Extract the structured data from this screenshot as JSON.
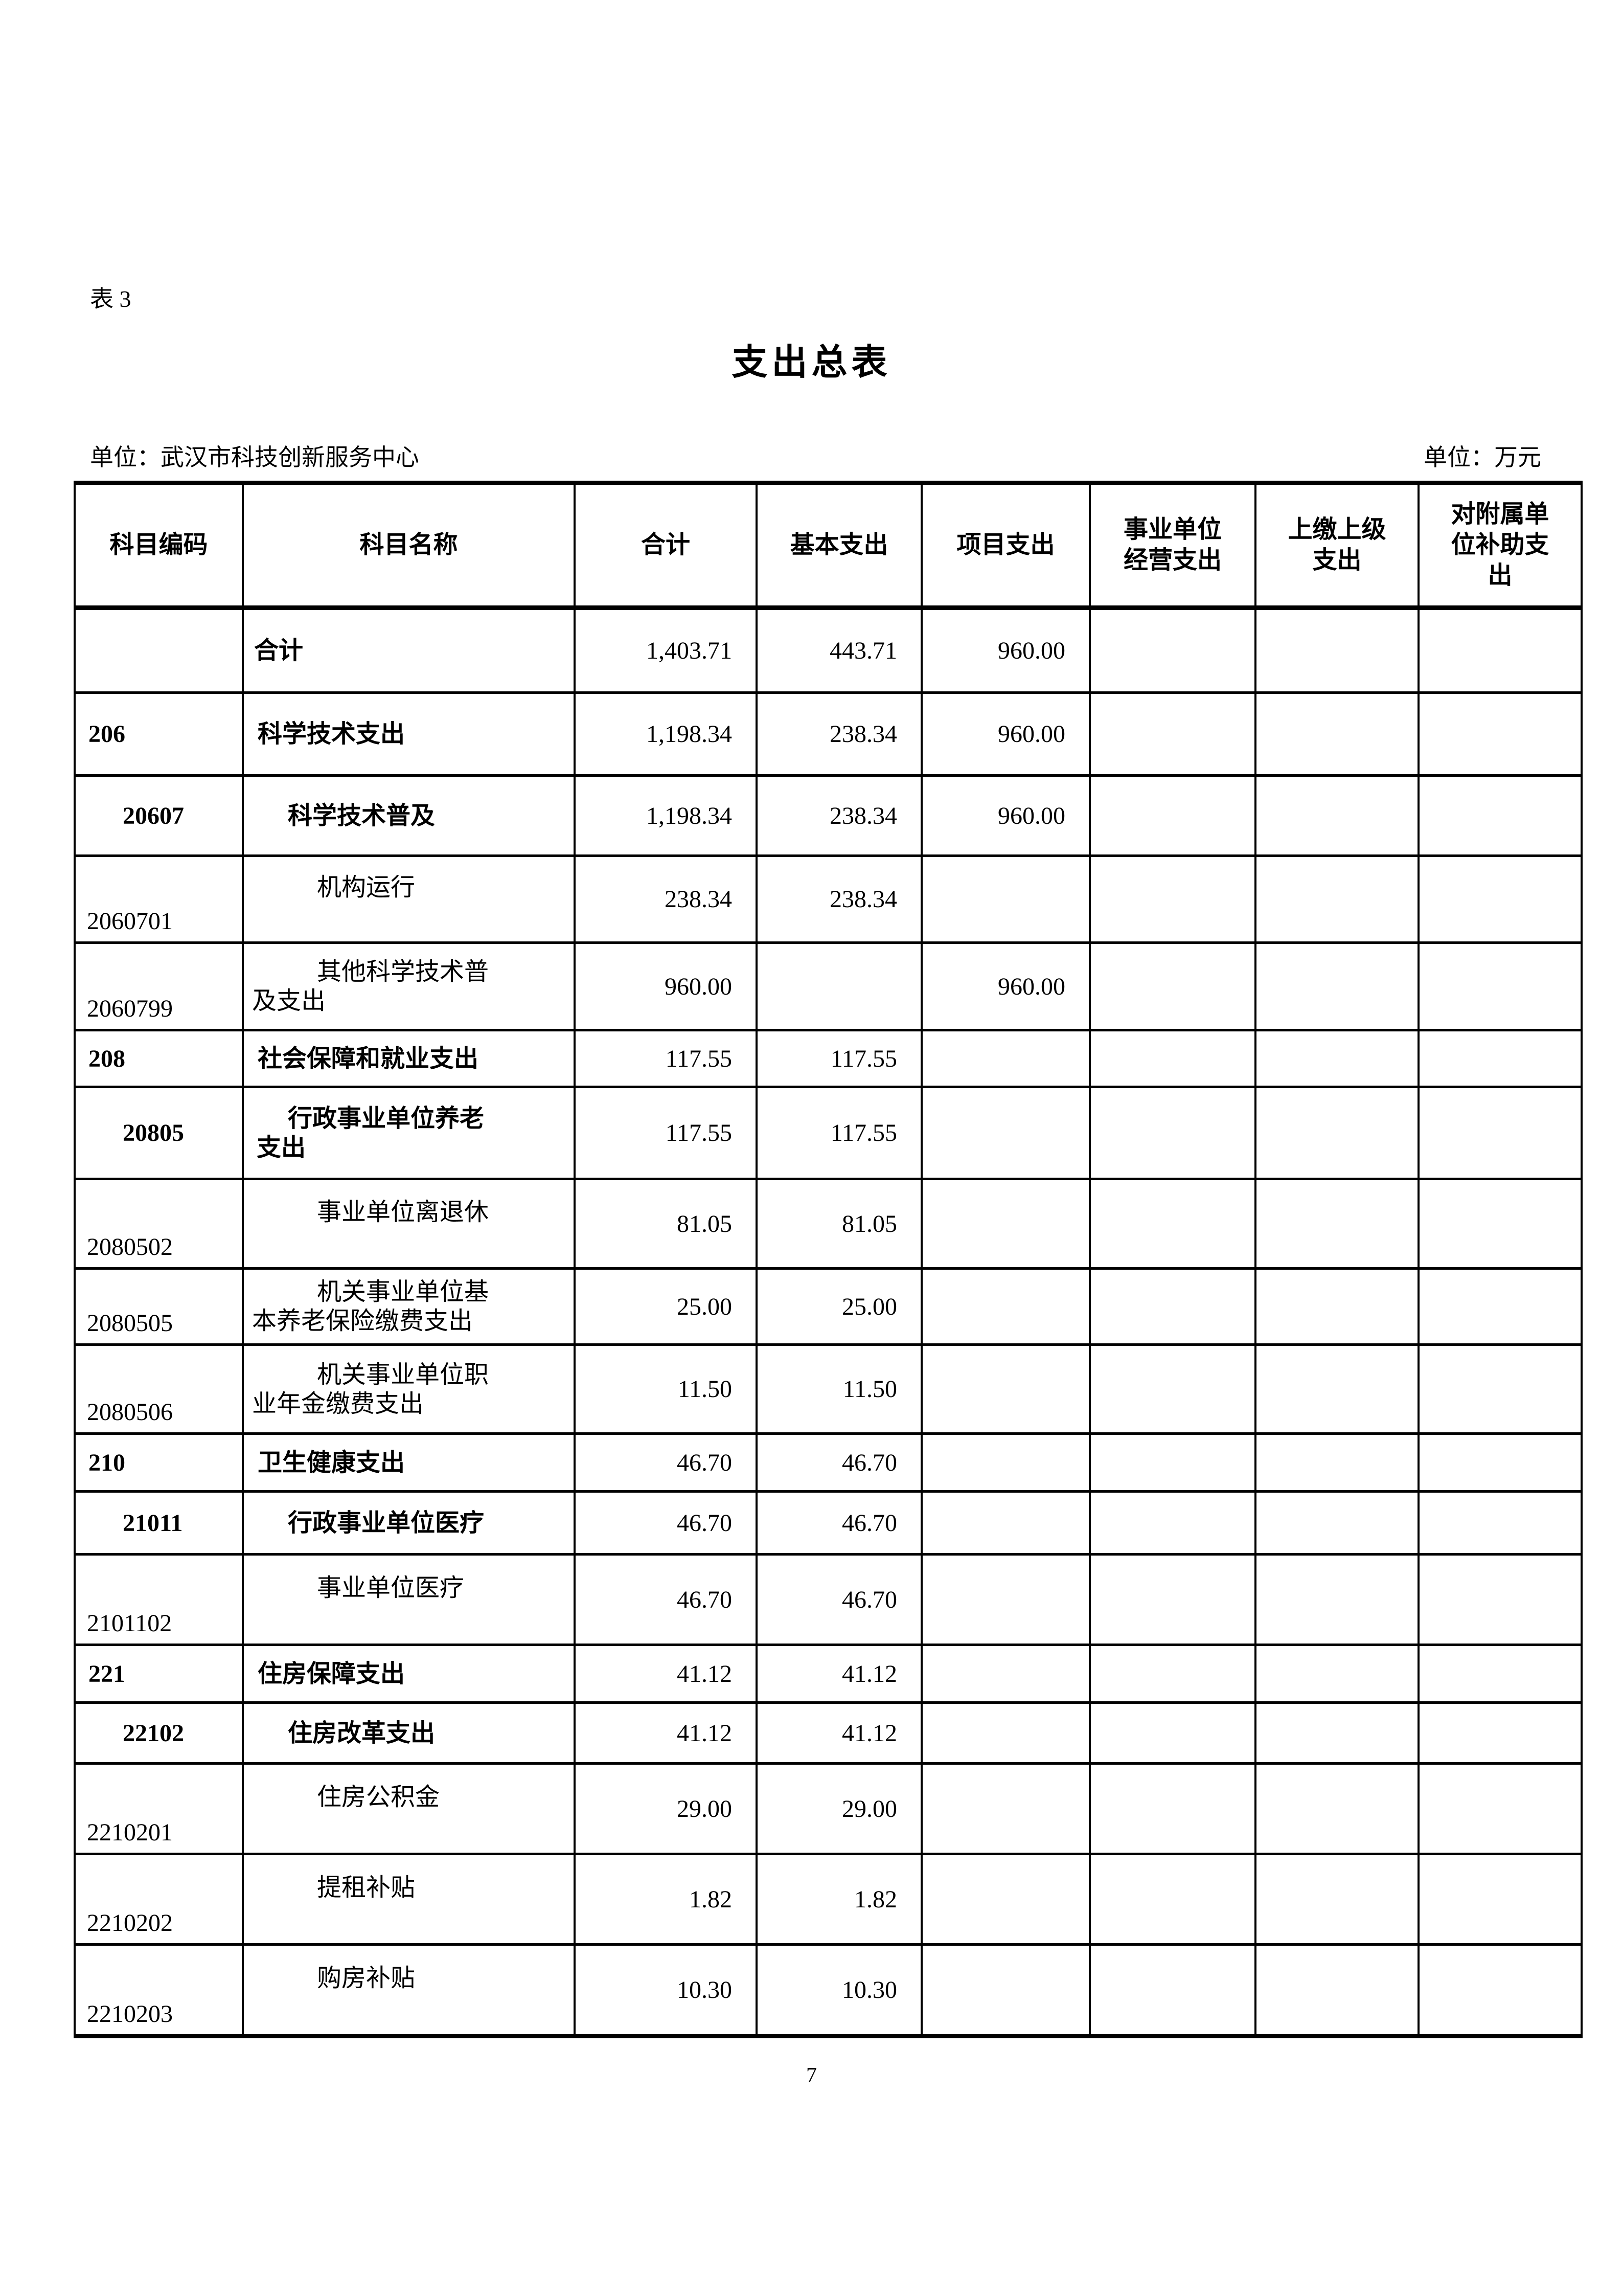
{
  "page": {
    "table_label": "表 3",
    "title": "支出总表",
    "unit_left": "单位：武汉市科技创新服务中心",
    "unit_right": "单位：万元",
    "page_number": "7"
  },
  "table": {
    "headers": [
      {
        "lines": [
          "科目编码"
        ]
      },
      {
        "lines": [
          "科目名称"
        ]
      },
      {
        "lines": [
          "合计"
        ]
      },
      {
        "lines": [
          "基本支出"
        ]
      },
      {
        "lines": [
          "项目支出"
        ]
      },
      {
        "lines": [
          "事业单位",
          "经营支出"
        ]
      },
      {
        "lines": [
          "上缴上级",
          "支出"
        ]
      },
      {
        "lines": [
          "对附属单",
          "位补助支",
          "出"
        ]
      }
    ],
    "rows": [
      {
        "code": "",
        "level": 0,
        "name": [
          "合计"
        ],
        "values": [
          "1,403.71",
          "443.71",
          "960.00",
          "",
          "",
          ""
        ]
      },
      {
        "code": "206",
        "level": 1,
        "name": [
          "科学技术支出"
        ],
        "values": [
          "1,198.34",
          "238.34",
          "960.00",
          "",
          "",
          ""
        ]
      },
      {
        "code": "20607",
        "level": 2,
        "name": [
          "科学技术普及"
        ],
        "values": [
          "1,198.34",
          "238.34",
          "960.00",
          "",
          "",
          ""
        ]
      },
      {
        "code": "2060701",
        "level": 3,
        "name": [
          "机构运行"
        ],
        "values": [
          "238.34",
          "238.34",
          "",
          "",
          "",
          ""
        ]
      },
      {
        "code": "2060799",
        "level": 3,
        "name": [
          "其他科学技术普",
          "及支出"
        ],
        "values": [
          "960.00",
          "",
          "960.00",
          "",
          "",
          ""
        ]
      },
      {
        "code": "208",
        "level": 1,
        "name": [
          "社会保障和就业支出"
        ],
        "values": [
          "117.55",
          "117.55",
          "",
          "",
          "",
          ""
        ]
      },
      {
        "code": "20805",
        "level": 2,
        "name": [
          "行政事业单位养老",
          "支出"
        ],
        "values": [
          "117.55",
          "117.55",
          "",
          "",
          "",
          ""
        ]
      },
      {
        "code": "2080502",
        "level": 3,
        "name": [
          "事业单位离退休"
        ],
        "values": [
          "81.05",
          "81.05",
          "",
          "",
          "",
          ""
        ]
      },
      {
        "code": "2080505",
        "level": 3,
        "name": [
          "机关事业单位基",
          "本养老保险缴费支出"
        ],
        "values": [
          "25.00",
          "25.00",
          "",
          "",
          "",
          ""
        ]
      },
      {
        "code": "2080506",
        "level": 3,
        "name": [
          "机关事业单位职",
          "业年金缴费支出"
        ],
        "values": [
          "11.50",
          "11.50",
          "",
          "",
          "",
          ""
        ]
      },
      {
        "code": "210",
        "level": 1,
        "name": [
          "卫生健康支出"
        ],
        "values": [
          "46.70",
          "46.70",
          "",
          "",
          "",
          ""
        ]
      },
      {
        "code": "21011",
        "level": 2,
        "name": [
          "行政事业单位医疗"
        ],
        "values": [
          "46.70",
          "46.70",
          "",
          "",
          "",
          ""
        ]
      },
      {
        "code": "2101102",
        "level": 3,
        "name": [
          "事业单位医疗"
        ],
        "values": [
          "46.70",
          "46.70",
          "",
          "",
          "",
          ""
        ]
      },
      {
        "code": "221",
        "level": 1,
        "name": [
          "住房保障支出"
        ],
        "values": [
          "41.12",
          "41.12",
          "",
          "",
          "",
          ""
        ]
      },
      {
        "code": "22102",
        "level": 2,
        "name": [
          "住房改革支出"
        ],
        "values": [
          "41.12",
          "41.12",
          "",
          "",
          "",
          ""
        ]
      },
      {
        "code": "2210201",
        "level": 3,
        "name": [
          "住房公积金"
        ],
        "values": [
          "29.00",
          "29.00",
          "",
          "",
          "",
          ""
        ]
      },
      {
        "code": "2210202",
        "level": 3,
        "name": [
          "提租补贴"
        ],
        "values": [
          "1.82",
          "1.82",
          "",
          "",
          "",
          ""
        ]
      },
      {
        "code": "2210203",
        "level": 3,
        "name": [
          "购房补贴"
        ],
        "values": [
          "10.30",
          "10.30",
          "",
          "",
          "",
          ""
        ]
      }
    ]
  }
}
